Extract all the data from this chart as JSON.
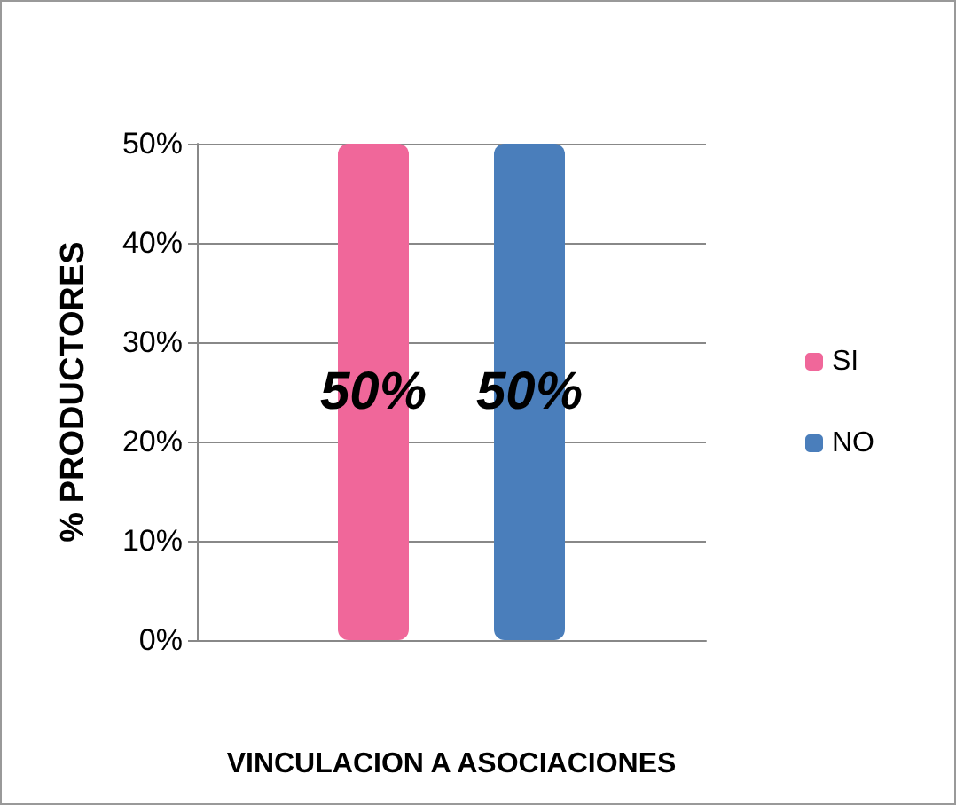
{
  "chart_data": {
    "type": "bar",
    "xlabel": "VINCULACION A ASOCIACIONES",
    "ylabel": "% PRODUCTORES",
    "categories": [
      null
    ],
    "series": [
      {
        "name": "SI",
        "color": "#f0679a",
        "values": [
          50
        ],
        "value_labels": [
          "50%"
        ]
      },
      {
        "name": "NO",
        "color": "#4a7ebb",
        "values": [
          50
        ],
        "value_labels": [
          "50%"
        ]
      }
    ],
    "ylim": [
      0,
      50
    ],
    "yticks": [
      {
        "value": 0,
        "label": "0%"
      },
      {
        "value": 10,
        "label": "10%"
      },
      {
        "value": 20,
        "label": "20%"
      },
      {
        "value": 30,
        "label": "30%"
      },
      {
        "value": 40,
        "label": "40%"
      },
      {
        "value": 50,
        "label": "50%"
      }
    ],
    "grid": "y",
    "legend": "right"
  }
}
